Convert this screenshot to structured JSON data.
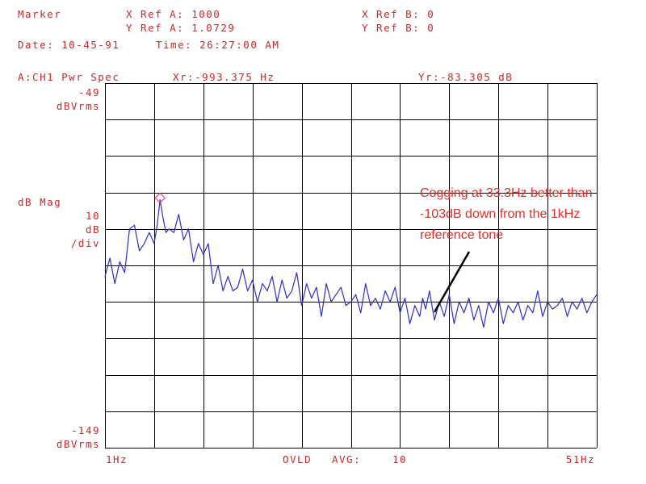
{
  "header": {
    "marker_label": "Marker",
    "x_ref_a": "X Ref A: 1000",
    "y_ref_a": "Y Ref A: 1.0729",
    "x_ref_b": "X Ref B: 0",
    "y_ref_b": "Y Ref B: 0",
    "date": "Date: 10-45-91",
    "time": "Time: 26:27:00 AM"
  },
  "trace_header": {
    "title": "A:CH1 Pwr Spec",
    "xr": "Xr:-993.375 Hz",
    "yr": "Yr:-83.305 dB"
  },
  "annotation": {
    "text": "Cogging at 33.3Hz better than -103dB down from the 1kHz reference tone"
  },
  "colors": {
    "text": "#c62a2a",
    "trace": "#2f2fc0",
    "grid": "#000000",
    "marker": "#e0409a",
    "annotation": "#e0302b"
  },
  "chart_data": {
    "type": "line",
    "x_scale": "linear",
    "xlim": [
      1,
      51
    ],
    "ylim": [
      -149,
      -49
    ],
    "y_unit_top": "dBVrms",
    "y_unit_bottom": "dBVrms",
    "ylabel": "dB Mag",
    "scale_value": "10",
    "scale_unit": "dB",
    "scale_per": "/div",
    "y_top_label": "-49",
    "y_bottom_label": "-149",
    "x_start_label": "1Hz",
    "x_end_label": "51Hz",
    "footer_status": "OVLD",
    "footer_avg": "AVG:",
    "footer_avg_count": "10",
    "grid": true,
    "marker": {
      "x": 6.6,
      "y": -80.5
    },
    "series": [
      {
        "x": [
          1.0,
          1.5,
          2.0,
          2.5,
          3.0,
          3.5,
          4.0,
          4.5,
          5.0,
          5.5,
          6.0,
          6.3,
          6.6,
          6.9,
          7.2,
          7.5,
          8.0,
          8.5,
          9.0,
          9.5,
          10.0,
          10.5,
          11.0,
          11.5,
          12.0,
          12.5,
          13.0,
          13.5,
          14.0,
          14.5,
          15.0,
          15.5,
          16.0,
          16.5,
          17.0,
          17.5,
          18.0,
          18.5,
          19.0,
          19.5,
          20.0,
          20.5,
          21.0,
          21.5,
          22.0,
          22.5,
          23.0,
          23.5,
          24.0,
          24.5,
          25.0,
          25.5,
          26.0,
          26.5,
          27.0,
          27.5,
          28.0,
          28.5,
          29.0,
          29.5,
          30.0,
          30.5,
          31.0,
          31.5,
          32.0,
          32.5,
          33.0,
          33.3,
          33.6,
          34.0,
          34.5,
          35.0,
          35.5,
          36.0,
          36.5,
          37.0,
          37.5,
          38.0,
          38.5,
          39.0,
          39.5,
          40.0,
          40.5,
          41.0,
          41.5,
          42.0,
          42.5,
          43.0,
          43.5,
          44.0,
          44.5,
          45.0,
          45.5,
          46.0,
          46.5,
          47.0,
          47.5,
          48.0,
          48.5,
          49.0,
          49.5,
          50.0,
          50.5,
          51.0
        ],
        "y": [
          -102,
          -97,
          -104,
          -98,
          -101,
          -89,
          -88,
          -95,
          -93,
          -90,
          -93,
          -88,
          -81,
          -86,
          -90,
          -89,
          -90,
          -85,
          -92,
          -89,
          -98,
          -93,
          -96,
          -93,
          -104,
          -99,
          -106,
          -102,
          -106,
          -105,
          -100,
          -106,
          -103,
          -109,
          -104,
          -106,
          -102,
          -109,
          -103,
          -108,
          -106,
          -101,
          -110,
          -104,
          -108,
          -105,
          -113,
          -104,
          -109,
          -107,
          -105,
          -110,
          -109,
          -107,
          -112,
          -104,
          -110,
          -108,
          -111,
          -106,
          -109,
          -105,
          -112,
          -108,
          -115,
          -110,
          -113,
          -108,
          -111,
          -106,
          -114,
          -109,
          -113,
          -107,
          -115,
          -109,
          -112,
          -108,
          -114,
          -110,
          -116,
          -109,
          -112,
          -108,
          -115,
          -110,
          -112,
          -109,
          -114,
          -110,
          -112,
          -106,
          -113,
          -109,
          -111,
          -110,
          -108,
          -113,
          -109,
          -111,
          -108,
          -112,
          -109,
          -107
        ]
      }
    ]
  }
}
